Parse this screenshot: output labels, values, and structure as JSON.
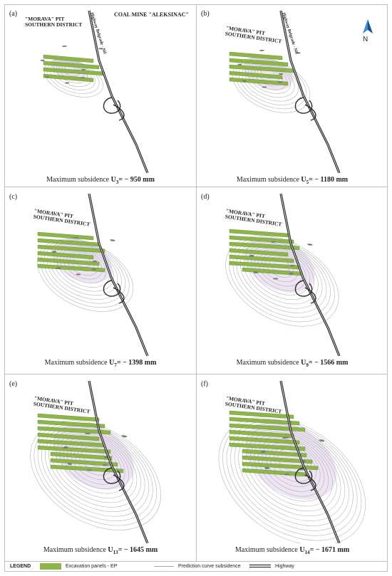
{
  "header": {
    "title": "COAL MINE \"ALEKSINAC\"",
    "north_label": "N"
  },
  "labels": {
    "pit_line1": "\"MORAVA\" PIT",
    "pit_line2": "SOUTHERN DISTRICT",
    "highway": "Highway Belgrade - Niš"
  },
  "panels": [
    {
      "id": "a",
      "label": "(a)",
      "caption_prefix": "Maximum subsidence ",
      "u": "U",
      "sub": "3",
      "eq": "= ",
      "value": "− 950 mm",
      "panels_count": 4,
      "rings": 8
    },
    {
      "id": "b",
      "label": "(b)",
      "caption_prefix": "Maximum subsidence ",
      "u": "U",
      "sub": "5",
      "eq": "= ",
      "value": "− 1180 mm",
      "panels_count": 5,
      "rings": 10
    },
    {
      "id": "c",
      "label": "(c)",
      "caption_prefix": "Maximum subsidence ",
      "u": "U",
      "sub": "7",
      "eq": "= ",
      "value": "− 1398 mm",
      "panels_count": 6,
      "rings": 12
    },
    {
      "id": "d",
      "label": "(d)",
      "caption_prefix": "Maximum subsidence ",
      "u": "U",
      "sub": "9",
      "eq": "= ",
      "value": "− 1566 mm",
      "panels_count": 7,
      "rings": 13
    },
    {
      "id": "e",
      "label": "(e)",
      "caption_prefix": "Maximum subsidence ",
      "u": "U",
      "sub": "13",
      "eq": "= ",
      "value": "− 1645 mm",
      "panels_count": 9,
      "rings": 15
    },
    {
      "id": "f",
      "label": "(f)",
      "caption_prefix": "Maximum subsidence ",
      "u": "U",
      "sub": "14",
      "eq": "= ",
      "value": "− 1671 mm",
      "panels_count": 10,
      "rings": 16
    }
  ],
  "legend": {
    "title": "LEGEND",
    "excavation": "Excavation panels - EP",
    "prediction": "Prediction curve subsidence",
    "highway": "Highway"
  },
  "colors": {
    "panel_green": "#8db54a",
    "contour": "#a8a8a8",
    "shade": "#e6d9ef",
    "highway": "#2b2b2b"
  }
}
